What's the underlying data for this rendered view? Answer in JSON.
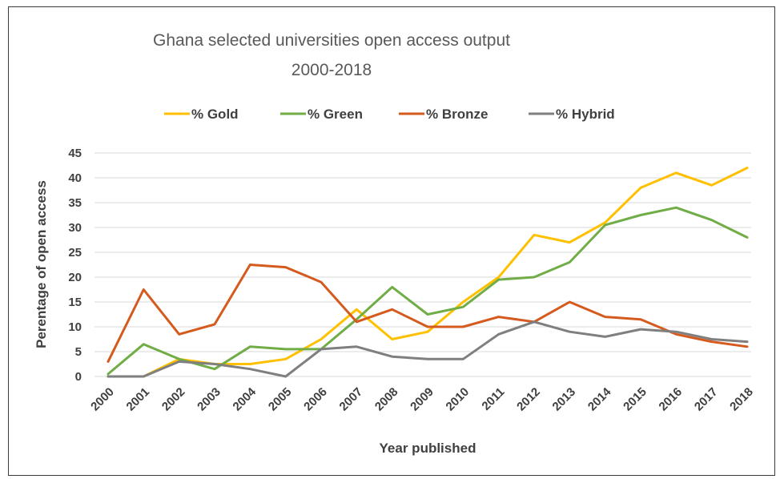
{
  "chart_data": {
    "type": "line",
    "title_line1": "Ghana selected universities open access output",
    "title_line2": "2000-2018",
    "xlabel": "Year published",
    "ylabel": "Perentage of open access",
    "x": [
      "2000",
      "2001",
      "2002",
      "2003",
      "2004",
      "2005",
      "2006",
      "2007",
      "2008",
      "2009",
      "2010",
      "2011",
      "2012",
      "2013",
      "2014",
      "2015",
      "2016",
      "2017",
      "2018"
    ],
    "yticks": [
      0,
      5,
      10,
      15,
      20,
      25,
      30,
      35,
      40,
      45
    ],
    "ylim": [
      0,
      45
    ],
    "grid": true,
    "legend_position": "top",
    "series": [
      {
        "name": "% Gold",
        "color": "#FFC000",
        "values": [
          0,
          0,
          3.5,
          2.5,
          2.5,
          3.5,
          7.5,
          13.5,
          7.5,
          9,
          15,
          20,
          28.5,
          27,
          31,
          38,
          41,
          38.5,
          42
        ]
      },
      {
        "name": "% Green",
        "color": "#70AD47",
        "values": [
          0.5,
          6.5,
          3.5,
          1.5,
          6,
          5.5,
          5.5,
          11.5,
          18,
          12.5,
          14,
          19.5,
          20,
          23,
          30.5,
          32.5,
          34,
          31.5,
          28
        ]
      },
      {
        "name": "% Bronze",
        "color": "#D55A1E",
        "values": [
          3,
          17.5,
          8.5,
          10.5,
          22.5,
          22,
          19,
          11,
          13.5,
          10,
          10,
          12,
          11,
          15,
          12,
          11.5,
          8.5,
          7,
          6
        ]
      },
      {
        "name": "% Hybrid",
        "color": "#7F7F7F",
        "values": [
          0,
          0,
          3,
          2.5,
          1.5,
          0,
          5.5,
          6,
          4,
          3.5,
          3.5,
          8.5,
          11,
          9,
          8,
          9.5,
          9,
          7.5,
          7
        ]
      }
    ]
  }
}
